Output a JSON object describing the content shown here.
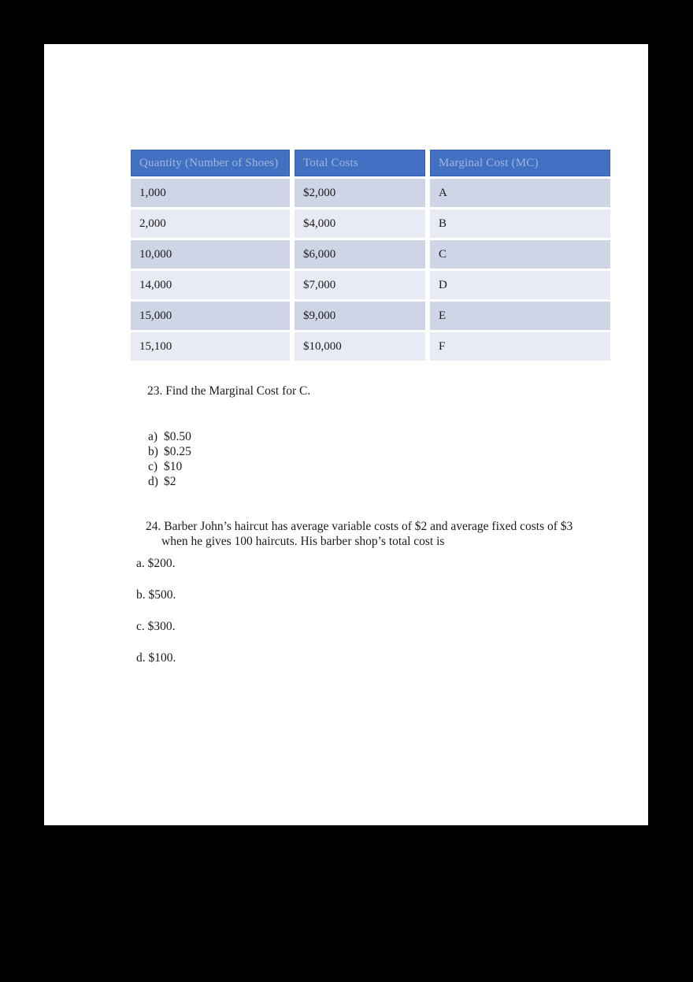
{
  "page": {
    "background_color": "#000000",
    "paper_color": "#ffffff"
  },
  "table": {
    "columns": [
      "Quantity (Number of Shoes)",
      "Total Costs",
      "Marginal Cost (MC)"
    ],
    "rows": [
      [
        "1,000",
        "$2,000",
        "A"
      ],
      [
        "2,000",
        "$4,000",
        "B"
      ],
      [
        "10,000",
        "$6,000",
        "C"
      ],
      [
        "14,000",
        "$7,000",
        "D"
      ],
      [
        "15,000",
        "$9,000",
        "E"
      ],
      [
        "15,100",
        "$10,000",
        "F"
      ]
    ],
    "colors": {
      "header_bg": "#4271C3",
      "header_border": "#3560AC",
      "header_text": "#A2B5DB",
      "row_dark": "#CFD5E7",
      "row_light": "#E9EBF4",
      "body_text": "#1b1b1b"
    }
  },
  "question23": {
    "text": "23. Find the Marginal Cost for C.",
    "options": [
      {
        "label": "a)",
        "text": "$0.50"
      },
      {
        "label": "b)",
        "text": "$0.25"
      },
      {
        "label": "c)",
        "text": "$10"
      },
      {
        "label": "d)",
        "text": "$2"
      }
    ]
  },
  "question24": {
    "line1": "24. Barber John’s haircut has average variable costs of $2 and average fixed costs of $3",
    "line2": "when he gives 100 haircuts. His barber shop’s total cost is",
    "options": [
      "a. $200.",
      "b. $500.",
      "c. $300.",
      "d. $100."
    ]
  }
}
